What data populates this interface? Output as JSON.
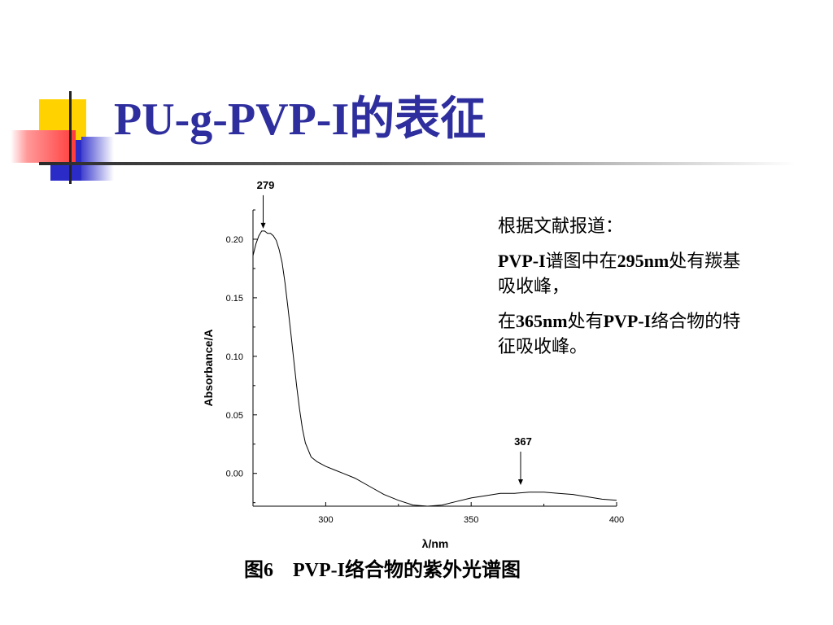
{
  "slide": {
    "title": "PU-g-PVP-I的表征",
    "caption": "图6    PVP-I络合物的紫外光谱图"
  },
  "note": {
    "heading": "根据文献报道：",
    "p1_prefix": "PVP-I",
    "p1_mid1": "谱图中在",
    "p1_num": "295nm",
    "p1_mid2": "处有羰基吸收峰，",
    "p2_a": "在",
    "p2_num": "365nm",
    "p2_b": "处有",
    "p2_c": "PVP-I",
    "p2_d": "络合物的特征吸收峰。"
  },
  "colors": {
    "title": "#2e2e9e",
    "accent_yellow": "#ffd200",
    "accent_blue": "#2b2bc8",
    "accent_red": "#ff3b3b"
  },
  "chart_data": {
    "type": "line",
    "xlabel": "λ/nm",
    "ylabel": "Absorbance/A",
    "xlim": [
      275,
      400
    ],
    "ylim": [
      -0.028,
      0.225
    ],
    "x_ticks": [
      300,
      350,
      400
    ],
    "y_ticks": [
      0.0,
      0.05,
      0.1,
      0.15,
      0.2
    ],
    "x_tick_labels": [
      "300",
      "350",
      "400"
    ],
    "y_tick_labels": [
      "0.00",
      "0.05",
      "0.10",
      "0.15",
      "0.20"
    ],
    "grid": false,
    "annotations": [
      {
        "label": "279",
        "x": 278.5,
        "y": 0.207
      },
      {
        "label": "367",
        "x": 367,
        "y": -0.012
      }
    ],
    "series": [
      {
        "x": [
          275,
          276,
          277,
          278,
          279,
          280,
          281,
          282,
          283,
          284,
          285,
          286,
          287,
          288,
          289,
          290,
          291,
          292,
          293,
          295,
          297,
          300,
          303,
          306,
          310,
          315,
          320,
          325,
          330,
          335,
          340,
          345,
          350,
          355,
          360,
          365,
          370,
          375,
          380,
          385,
          390,
          395,
          400
        ],
        "y": [
          0.186,
          0.196,
          0.203,
          0.207,
          0.207,
          0.205,
          0.205,
          0.203,
          0.199,
          0.191,
          0.18,
          0.163,
          0.142,
          0.12,
          0.097,
          0.075,
          0.055,
          0.038,
          0.026,
          0.014,
          0.01,
          0.006,
          0.003,
          0.0,
          -0.004,
          -0.011,
          -0.018,
          -0.023,
          -0.027,
          -0.028,
          -0.027,
          -0.024,
          -0.021,
          -0.019,
          -0.017,
          -0.017,
          -0.016,
          -0.016,
          -0.017,
          -0.018,
          -0.02,
          -0.022,
          -0.023
        ],
        "color": "#000000"
      }
    ]
  }
}
